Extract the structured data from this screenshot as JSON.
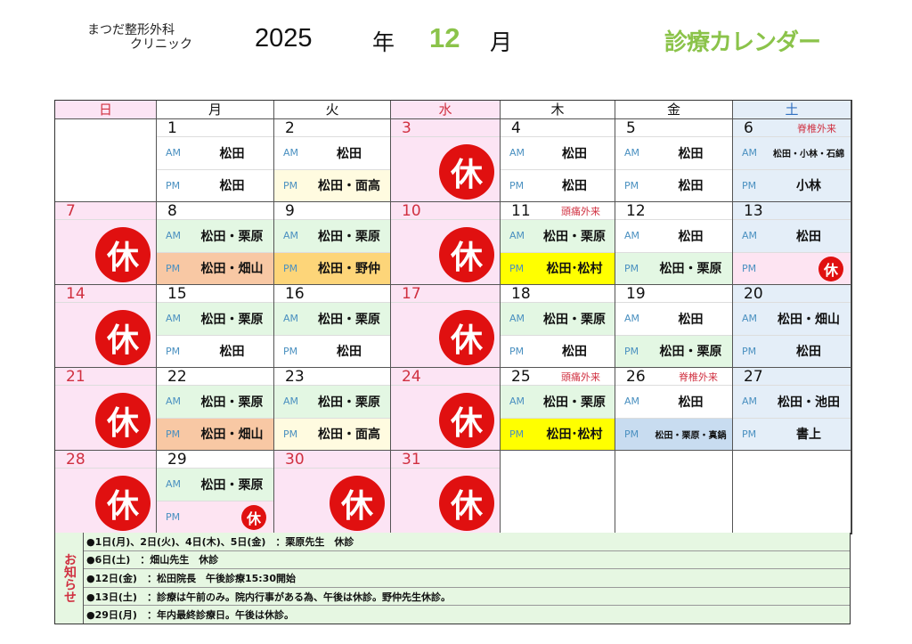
{
  "header": {
    "clinic_line1": "まつだ整形外科",
    "clinic_line2": "クリニック",
    "year": "2025",
    "nen": "年",
    "month": "12",
    "gatsu": "月",
    "title": "診療カレンダー"
  },
  "colors": {
    "accent": "#8bc34a",
    "holiday_red": "#e01010",
    "holiday_bg": "#fce4f4",
    "saturday_bg": "#e4eef8",
    "green": "#e3f7e3",
    "salmon": "#f8c8a4",
    "orange": "#fdd579",
    "yellow": "#ffff00",
    "light_yellow": "#fffbe0",
    "blue": "#c8dcf0",
    "pink": "#fde4f2",
    "white": "#ffffff"
  },
  "weekdays": [
    {
      "label": "日",
      "color": "#d03040",
      "bg": "#fce4f4"
    },
    {
      "label": "月",
      "color": "#111",
      "bg": "#fff"
    },
    {
      "label": "火",
      "color": "#111",
      "bg": "#fff"
    },
    {
      "label": "水",
      "color": "#d03040",
      "bg": "#fce4f4"
    },
    {
      "label": "木",
      "color": "#111",
      "bg": "#fff"
    },
    {
      "label": "金",
      "color": "#111",
      "bg": "#fff"
    },
    {
      "label": "土",
      "color": "#3070c0",
      "bg": "#e4eef8"
    }
  ],
  "am_label": "AM",
  "pm_label": "PM",
  "closed_label": "休",
  "weeks": [
    [
      {
        "type": "empty"
      },
      {
        "date": "1",
        "am": "松田",
        "am_bg": "white",
        "pm": "松田",
        "pm_bg": "white"
      },
      {
        "date": "2",
        "am": "松田",
        "am_bg": "white",
        "pm": "松田・面高",
        "pm_bg": "light_yellow"
      },
      {
        "type": "closed",
        "date": "3"
      },
      {
        "date": "4",
        "am": "松田",
        "am_bg": "white",
        "pm": "松田",
        "pm_bg": "white"
      },
      {
        "date": "5",
        "am": "松田",
        "am_bg": "white",
        "pm": "松田",
        "pm_bg": "white"
      },
      {
        "date": "6",
        "sat": true,
        "note": "脊椎外来",
        "am": "松田・小林・石綿",
        "am_small": true,
        "am_bg": "saturday_bg",
        "pm": "小林",
        "pm_bg": "saturday_bg"
      }
    ],
    [
      {
        "type": "closed",
        "date": "7"
      },
      {
        "date": "8",
        "am": "松田・栗原",
        "am_bg": "green",
        "pm": "松田・畑山",
        "pm_bg": "salmon"
      },
      {
        "date": "9",
        "am": "松田・栗原",
        "am_bg": "green",
        "pm": "松田・野仲",
        "pm_bg": "orange"
      },
      {
        "type": "closed",
        "date": "10"
      },
      {
        "date": "11",
        "note": "頭痛外来",
        "am": "松田・栗原",
        "am_bg": "green",
        "pm": "松田･松村",
        "pm_bg": "yellow"
      },
      {
        "date": "12",
        "am": "松田",
        "am_bg": "white",
        "pm": "松田・栗原",
        "pm_bg": "green"
      },
      {
        "date": "13",
        "sat": true,
        "am": "松田",
        "am_bg": "saturday_bg",
        "pm_closed": true,
        "pm_bg": "pink"
      }
    ],
    [
      {
        "type": "closed",
        "date": "14"
      },
      {
        "date": "15",
        "am": "松田・栗原",
        "am_bg": "green",
        "pm": "松田",
        "pm_bg": "white"
      },
      {
        "date": "16",
        "am": "松田・栗原",
        "am_bg": "green",
        "pm": "松田",
        "pm_bg": "white"
      },
      {
        "type": "closed",
        "date": "17"
      },
      {
        "date": "18",
        "am": "松田・栗原",
        "am_bg": "green",
        "pm": "松田",
        "pm_bg": "white"
      },
      {
        "date": "19",
        "am": "松田",
        "am_bg": "white",
        "pm": "松田・栗原",
        "pm_bg": "green"
      },
      {
        "date": "20",
        "sat": true,
        "am": "松田・畑山",
        "am_bg": "saturday_bg",
        "pm": "松田",
        "pm_bg": "saturday_bg"
      }
    ],
    [
      {
        "type": "closed",
        "date": "21"
      },
      {
        "date": "22",
        "am": "松田・栗原",
        "am_bg": "green",
        "pm": "松田・畑山",
        "pm_bg": "salmon"
      },
      {
        "date": "23",
        "am": "松田・栗原",
        "am_bg": "green",
        "pm": "松田・面高",
        "pm_bg": "light_yellow"
      },
      {
        "type": "closed",
        "date": "24"
      },
      {
        "date": "25",
        "note": "頭痛外来",
        "am": "松田・栗原",
        "am_bg": "green",
        "pm": "松田･松村",
        "pm_bg": "yellow"
      },
      {
        "date": "26",
        "note": "脊椎外来",
        "am": "松田",
        "am_bg": "white",
        "pm": "松田・栗原・真鍋",
        "pm_small": true,
        "pm_bg": "blue"
      },
      {
        "date": "27",
        "sat": true,
        "am": "松田・池田",
        "am_bg": "saturday_bg",
        "pm": "書上",
        "pm_bg": "saturday_bg"
      }
    ],
    [
      {
        "type": "closed",
        "date": "28"
      },
      {
        "date": "29",
        "am": "松田・栗原",
        "am_bg": "green",
        "pm_closed": true,
        "pm_bg": "pink"
      },
      {
        "type": "closed",
        "date": "30"
      },
      {
        "type": "closed",
        "date": "31"
      },
      {
        "type": "empty"
      },
      {
        "type": "empty"
      },
      {
        "type": "empty"
      }
    ]
  ],
  "notices": {
    "label": "お知らせ",
    "items": [
      "●1日(月)、2日(火)、4日(木)、5日(金)　：栗原先生　休診",
      "●6日(土)　：畑山先生　休診",
      "●12日(金)　：松田院長　午後診療15:30開始",
      "●13日(土)　：診療は午前のみ。院内行事がある為、午後は休診。野仲先生休診。",
      "●29日(月)　：年内最終診療日。午後は休診。"
    ]
  }
}
